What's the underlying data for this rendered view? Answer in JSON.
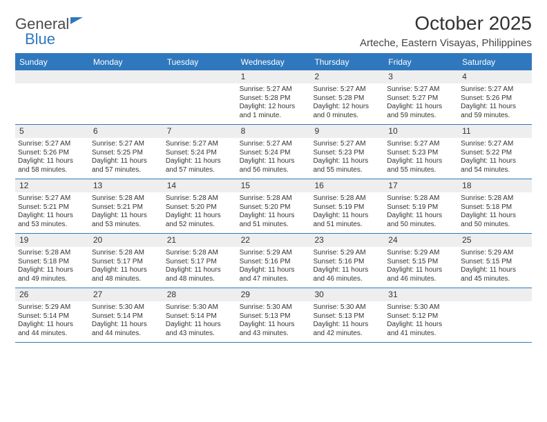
{
  "logo": {
    "line1": "General",
    "line2": "Blue"
  },
  "title": "October 2025",
  "location": "Arteche, Eastern Visayas, Philippines",
  "colors": {
    "brand": "#2f78bd",
    "dayrow_bg": "#eeeeee",
    "text": "#333333",
    "bg": "#ffffff"
  },
  "daynames": [
    "Sunday",
    "Monday",
    "Tuesday",
    "Wednesday",
    "Thursday",
    "Friday",
    "Saturday"
  ],
  "weeks": [
    [
      {
        "day": "",
        "sunrise": "",
        "sunset": "",
        "daylight": ""
      },
      {
        "day": "",
        "sunrise": "",
        "sunset": "",
        "daylight": ""
      },
      {
        "day": "",
        "sunrise": "",
        "sunset": "",
        "daylight": ""
      },
      {
        "day": "1",
        "sunrise": "Sunrise: 5:27 AM",
        "sunset": "Sunset: 5:28 PM",
        "daylight": "Daylight: 12 hours and 1 minute."
      },
      {
        "day": "2",
        "sunrise": "Sunrise: 5:27 AM",
        "sunset": "Sunset: 5:28 PM",
        "daylight": "Daylight: 12 hours and 0 minutes."
      },
      {
        "day": "3",
        "sunrise": "Sunrise: 5:27 AM",
        "sunset": "Sunset: 5:27 PM",
        "daylight": "Daylight: 11 hours and 59 minutes."
      },
      {
        "day": "4",
        "sunrise": "Sunrise: 5:27 AM",
        "sunset": "Sunset: 5:26 PM",
        "daylight": "Daylight: 11 hours and 59 minutes."
      }
    ],
    [
      {
        "day": "5",
        "sunrise": "Sunrise: 5:27 AM",
        "sunset": "Sunset: 5:26 PM",
        "daylight": "Daylight: 11 hours and 58 minutes."
      },
      {
        "day": "6",
        "sunrise": "Sunrise: 5:27 AM",
        "sunset": "Sunset: 5:25 PM",
        "daylight": "Daylight: 11 hours and 57 minutes."
      },
      {
        "day": "7",
        "sunrise": "Sunrise: 5:27 AM",
        "sunset": "Sunset: 5:24 PM",
        "daylight": "Daylight: 11 hours and 57 minutes."
      },
      {
        "day": "8",
        "sunrise": "Sunrise: 5:27 AM",
        "sunset": "Sunset: 5:24 PM",
        "daylight": "Daylight: 11 hours and 56 minutes."
      },
      {
        "day": "9",
        "sunrise": "Sunrise: 5:27 AM",
        "sunset": "Sunset: 5:23 PM",
        "daylight": "Daylight: 11 hours and 55 minutes."
      },
      {
        "day": "10",
        "sunrise": "Sunrise: 5:27 AM",
        "sunset": "Sunset: 5:23 PM",
        "daylight": "Daylight: 11 hours and 55 minutes."
      },
      {
        "day": "11",
        "sunrise": "Sunrise: 5:27 AM",
        "sunset": "Sunset: 5:22 PM",
        "daylight": "Daylight: 11 hours and 54 minutes."
      }
    ],
    [
      {
        "day": "12",
        "sunrise": "Sunrise: 5:27 AM",
        "sunset": "Sunset: 5:21 PM",
        "daylight": "Daylight: 11 hours and 53 minutes."
      },
      {
        "day": "13",
        "sunrise": "Sunrise: 5:28 AM",
        "sunset": "Sunset: 5:21 PM",
        "daylight": "Daylight: 11 hours and 53 minutes."
      },
      {
        "day": "14",
        "sunrise": "Sunrise: 5:28 AM",
        "sunset": "Sunset: 5:20 PM",
        "daylight": "Daylight: 11 hours and 52 minutes."
      },
      {
        "day": "15",
        "sunrise": "Sunrise: 5:28 AM",
        "sunset": "Sunset: 5:20 PM",
        "daylight": "Daylight: 11 hours and 51 minutes."
      },
      {
        "day": "16",
        "sunrise": "Sunrise: 5:28 AM",
        "sunset": "Sunset: 5:19 PM",
        "daylight": "Daylight: 11 hours and 51 minutes."
      },
      {
        "day": "17",
        "sunrise": "Sunrise: 5:28 AM",
        "sunset": "Sunset: 5:19 PM",
        "daylight": "Daylight: 11 hours and 50 minutes."
      },
      {
        "day": "18",
        "sunrise": "Sunrise: 5:28 AM",
        "sunset": "Sunset: 5:18 PM",
        "daylight": "Daylight: 11 hours and 50 minutes."
      }
    ],
    [
      {
        "day": "19",
        "sunrise": "Sunrise: 5:28 AM",
        "sunset": "Sunset: 5:18 PM",
        "daylight": "Daylight: 11 hours and 49 minutes."
      },
      {
        "day": "20",
        "sunrise": "Sunrise: 5:28 AM",
        "sunset": "Sunset: 5:17 PM",
        "daylight": "Daylight: 11 hours and 48 minutes."
      },
      {
        "day": "21",
        "sunrise": "Sunrise: 5:28 AM",
        "sunset": "Sunset: 5:17 PM",
        "daylight": "Daylight: 11 hours and 48 minutes."
      },
      {
        "day": "22",
        "sunrise": "Sunrise: 5:29 AM",
        "sunset": "Sunset: 5:16 PM",
        "daylight": "Daylight: 11 hours and 47 minutes."
      },
      {
        "day": "23",
        "sunrise": "Sunrise: 5:29 AM",
        "sunset": "Sunset: 5:16 PM",
        "daylight": "Daylight: 11 hours and 46 minutes."
      },
      {
        "day": "24",
        "sunrise": "Sunrise: 5:29 AM",
        "sunset": "Sunset: 5:15 PM",
        "daylight": "Daylight: 11 hours and 46 minutes."
      },
      {
        "day": "25",
        "sunrise": "Sunrise: 5:29 AM",
        "sunset": "Sunset: 5:15 PM",
        "daylight": "Daylight: 11 hours and 45 minutes."
      }
    ],
    [
      {
        "day": "26",
        "sunrise": "Sunrise: 5:29 AM",
        "sunset": "Sunset: 5:14 PM",
        "daylight": "Daylight: 11 hours and 44 minutes."
      },
      {
        "day": "27",
        "sunrise": "Sunrise: 5:30 AM",
        "sunset": "Sunset: 5:14 PM",
        "daylight": "Daylight: 11 hours and 44 minutes."
      },
      {
        "day": "28",
        "sunrise": "Sunrise: 5:30 AM",
        "sunset": "Sunset: 5:14 PM",
        "daylight": "Daylight: 11 hours and 43 minutes."
      },
      {
        "day": "29",
        "sunrise": "Sunrise: 5:30 AM",
        "sunset": "Sunset: 5:13 PM",
        "daylight": "Daylight: 11 hours and 43 minutes."
      },
      {
        "day": "30",
        "sunrise": "Sunrise: 5:30 AM",
        "sunset": "Sunset: 5:13 PM",
        "daylight": "Daylight: 11 hours and 42 minutes."
      },
      {
        "day": "31",
        "sunrise": "Sunrise: 5:30 AM",
        "sunset": "Sunset: 5:12 PM",
        "daylight": "Daylight: 11 hours and 41 minutes."
      },
      {
        "day": "",
        "sunrise": "",
        "sunset": "",
        "daylight": ""
      }
    ]
  ]
}
